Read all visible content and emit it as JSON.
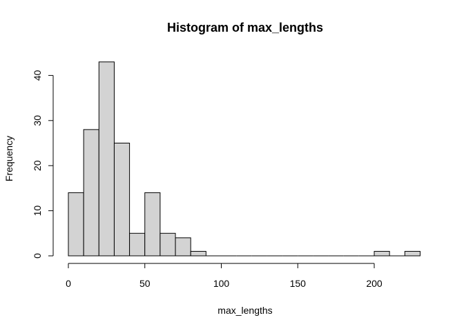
{
  "chart_data": {
    "type": "bar",
    "title": "Histogram of max_lengths",
    "xlabel": "max_lengths",
    "ylabel": "Frequency",
    "bin_width": 10,
    "bins": [
      {
        "start": 0,
        "end": 10,
        "count": 14
      },
      {
        "start": 10,
        "end": 20,
        "count": 28
      },
      {
        "start": 20,
        "end": 30,
        "count": 43
      },
      {
        "start": 30,
        "end": 40,
        "count": 25
      },
      {
        "start": 40,
        "end": 50,
        "count": 5
      },
      {
        "start": 50,
        "end": 60,
        "count": 14
      },
      {
        "start": 60,
        "end": 70,
        "count": 5
      },
      {
        "start": 70,
        "end": 80,
        "count": 4
      },
      {
        "start": 80,
        "end": 90,
        "count": 1
      },
      {
        "start": 90,
        "end": 100,
        "count": 0
      },
      {
        "start": 100,
        "end": 110,
        "count": 0
      },
      {
        "start": 110,
        "end": 120,
        "count": 0
      },
      {
        "start": 120,
        "end": 130,
        "count": 0
      },
      {
        "start": 130,
        "end": 140,
        "count": 0
      },
      {
        "start": 140,
        "end": 150,
        "count": 0
      },
      {
        "start": 150,
        "end": 160,
        "count": 0
      },
      {
        "start": 160,
        "end": 170,
        "count": 0
      },
      {
        "start": 170,
        "end": 180,
        "count": 0
      },
      {
        "start": 180,
        "end": 190,
        "count": 0
      },
      {
        "start": 190,
        "end": 200,
        "count": 0
      },
      {
        "start": 200,
        "end": 210,
        "count": 1
      },
      {
        "start": 210,
        "end": 220,
        "count": 0
      },
      {
        "start": 220,
        "end": 230,
        "count": 1
      }
    ],
    "xlim": [
      0,
      230
    ],
    "ylim": [
      0,
      43
    ],
    "x_ticks": [
      0,
      50,
      100,
      150,
      200
    ],
    "y_ticks": [
      0,
      10,
      20,
      30,
      40
    ],
    "bar_fill": "#d3d3d3",
    "bar_stroke": "#000000",
    "grid": false,
    "legend": "none"
  }
}
